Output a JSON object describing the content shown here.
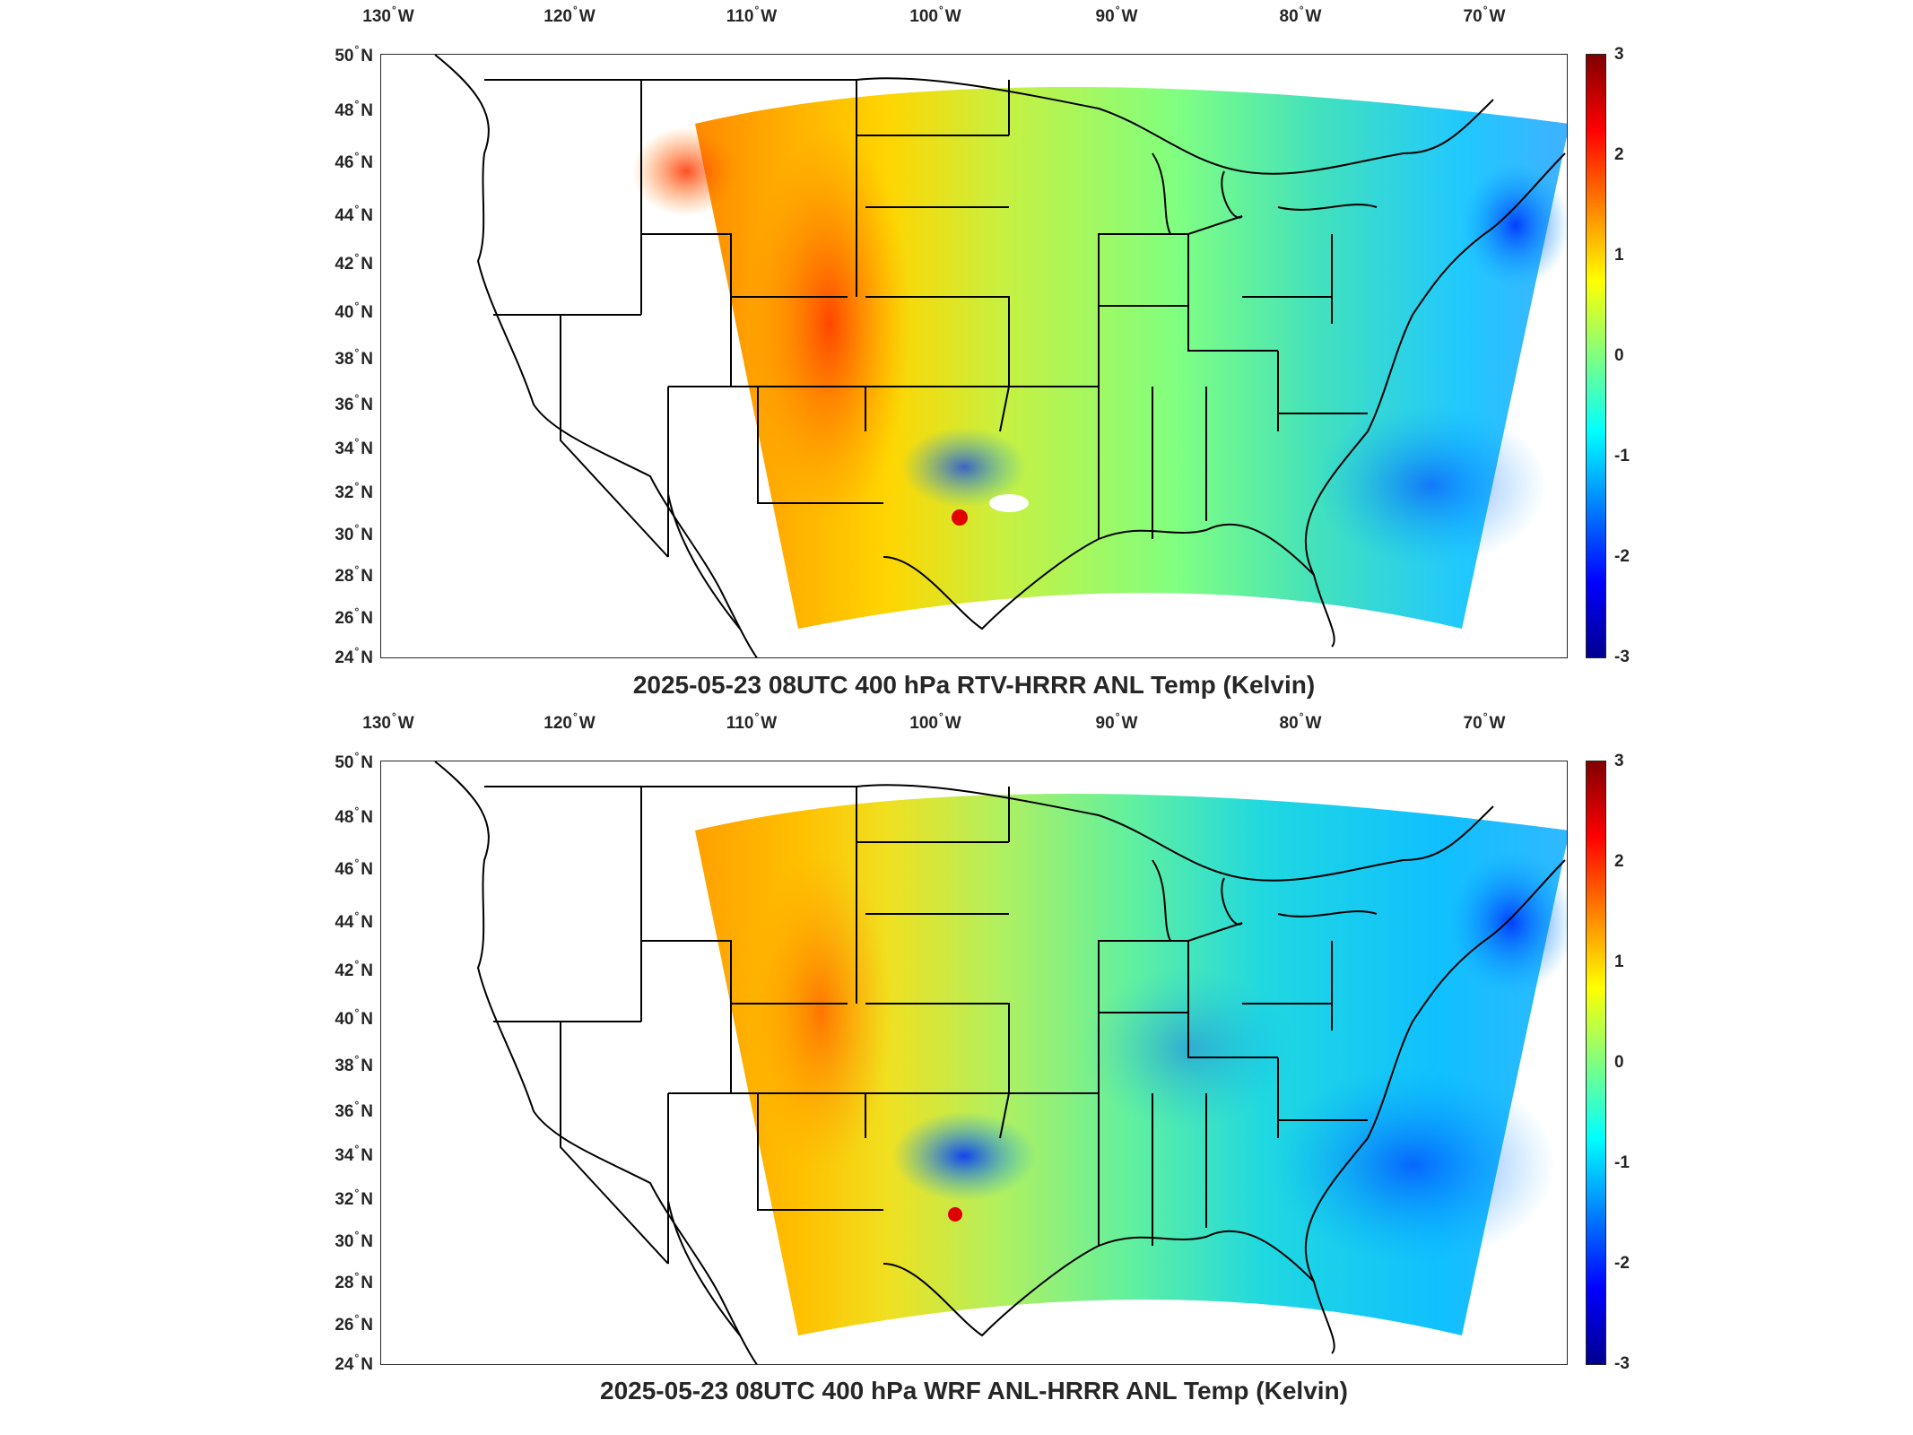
{
  "panels": [
    {
      "title": "2025-05-23 08UTC 400 hPa RTV-HRRR ANL Temp (Kelvin)",
      "lon_ticks": [
        "130",
        "120",
        "110",
        "100",
        "90",
        "80",
        "70"
      ],
      "lon_suffix": "W",
      "lat_ticks": [
        "50",
        "48",
        "46",
        "44",
        "42",
        "40",
        "38",
        "36",
        "34",
        "32",
        "30",
        "28",
        "26",
        "24"
      ],
      "lat_suffix": "N",
      "colorbar": {
        "ticks": [
          "3",
          "2",
          "1",
          "0",
          "-1",
          "-2",
          "-3"
        ],
        "min": -3,
        "max": 3,
        "colormap": "jet"
      }
    },
    {
      "title": "2025-05-23 08UTC 400 hPa WRF ANL-HRRR ANL Temp (Kelvin)",
      "lon_ticks": [
        "130",
        "120",
        "110",
        "100",
        "90",
        "80",
        "70"
      ],
      "lon_suffix": "W",
      "lat_ticks": [
        "50",
        "48",
        "46",
        "44",
        "42",
        "40",
        "38",
        "36",
        "34",
        "32",
        "30",
        "28",
        "26",
        "24"
      ],
      "lat_suffix": "N",
      "colorbar": {
        "ticks": [
          "3",
          "2",
          "1",
          "0",
          "-1",
          "-2",
          "-3"
        ],
        "min": -3,
        "max": 3,
        "colormap": "jet"
      }
    }
  ],
  "degree_symbol": "°",
  "colors": {
    "frame": "#262626",
    "text": "#262626",
    "state_lines": "#000000"
  }
}
